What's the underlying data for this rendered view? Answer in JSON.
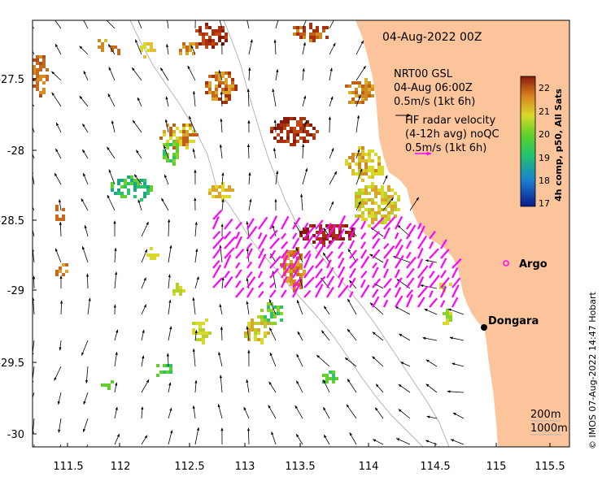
{
  "title": {
    "date_label": "04-Aug-2022 00Z",
    "product": "NRT00 GSL",
    "product_time": "04-Aug 06:00Z",
    "sst_vector_scale": "0.5m/s (1kt 6h)",
    "radar_title": "HF radar velocity",
    "radar_subtitle": "(4-12h avg) noQC",
    "radar_scale": "0.5m/s (1kt 6h)"
  },
  "colorbar": {
    "label": "4h comp, p50, All Sats",
    "ticks": [
      "22",
      "21",
      "20",
      "19",
      "18",
      "17"
    ]
  },
  "axes": {
    "x_ticks": [
      "111.5",
      "112",
      "112.5",
      "113",
      "113.5",
      "114",
      "114.5",
      "115",
      "115.5"
    ],
    "y_ticks": [
      "-27.5",
      "-28",
      "-28.5",
      "-29",
      "-29.5",
      "-30"
    ]
  },
  "places": {
    "argo": "Argo",
    "dongara": "Dongara"
  },
  "isobaths": {
    "label_200": "200m",
    "label_1000": "1000m"
  },
  "credit": "© IMOS 07-Aug-2022 14:47 Hobart",
  "colors": {
    "land": "#fbc49a",
    "radar_arrows": "#ff00ff",
    "argo_marker": "#ff00ff"
  }
}
